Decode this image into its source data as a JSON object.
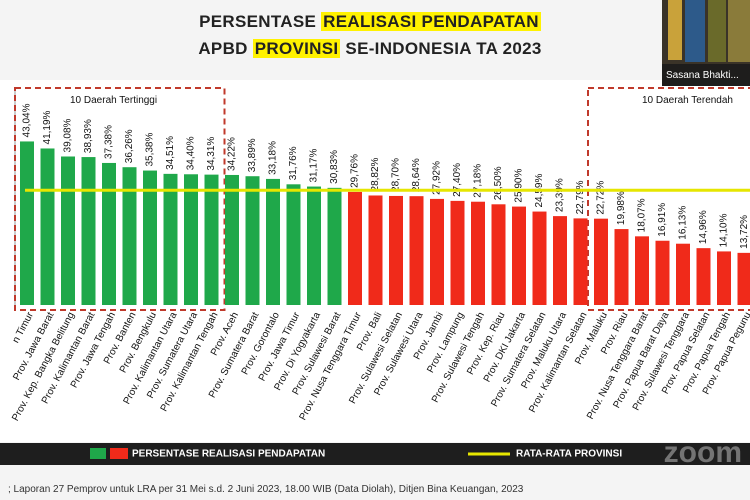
{
  "chart_data": {
    "type": "bar",
    "title_lines": [
      [
        {
          "text": "PERSENTASE ",
          "highlight": false
        },
        {
          "text": "REALISASI PENDAPATAN",
          "highlight": true
        }
      ],
      [
        {
          "text": "APBD ",
          "highlight": false
        },
        {
          "text": "PROVINSI",
          "highlight": true
        },
        {
          "text": " SE-INDONESIA TA 2023",
          "highlight": false
        }
      ]
    ],
    "categories": [
      "n Timur",
      "Prov. Jawa Barat",
      "Prov. Kep. Bangka Belitung",
      "Prov. Kalimantan Barat",
      "Prov. Jawa Tengah",
      "Prov. Banten",
      "Prov. Bengkulu",
      "Prov. Kalimantan Utara",
      "Prov. Sumatera Utara",
      "Prov. Kalimantan Tengah",
      "Prov. Aceh",
      "Prov. Sumatera Barat",
      "Prov. Gorontalo",
      "Prov. Jawa Timur",
      "Prov. Di Yogyakarta",
      "Prov. Sulawesi Barat",
      "Prov. Nusa Tenggara Timur",
      "Prov. Bali",
      "Prov. Sulawesi Selatan",
      "Prov. Sulawesi Utara",
      "Prov. Jambi",
      "Prov. Lampung",
      "Prov. Sulawesi Tengah",
      "Prov. Kep. Riau",
      "Prov. DKI Jakarta",
      "Prov. Sumatera Selatan",
      "Prov. Maluku Utara",
      "Prov. Kalimantan Selatan",
      "Prov. Maluku",
      "Prov. Riau",
      "Prov. Nusa Tenggara Barat",
      "Prov. Papua Barat Daya",
      "Prov. Sulawesi Tenggara",
      "Prov. Papua Selatan",
      "Prov. Papua Tengah",
      "Prov. Papua Pegunu"
    ],
    "values": [
      43.04,
      41.19,
      39.08,
      38.93,
      37.38,
      36.26,
      35.38,
      34.51,
      34.4,
      34.31,
      34.22,
      33.89,
      33.18,
      31.76,
      31.17,
      30.83,
      29.76,
      28.82,
      28.7,
      28.64,
      27.92,
      27.4,
      27.18,
      26.5,
      25.9,
      24.59,
      23.39,
      22.79,
      22.72,
      19.98,
      18.07,
      16.91,
      16.13,
      14.96,
      14.1,
      13.72
    ],
    "value_labels": [
      "43,04%",
      "41,19%",
      "39,08%",
      "38,93%",
      "37,38%",
      "36,26%",
      "35,38%",
      "34,51%",
      "34,40%",
      "34,31%",
      "34,22%",
      "33,89%",
      "33,18%",
      "31,76%",
      "31,17%",
      "30,83%",
      "29,76%",
      "28,82%",
      "28,70%",
      "28,64%",
      "27,92%",
      "27,40%",
      "27,18%",
      "26,50%",
      "25,90%",
      "24,59%",
      "23,39%",
      "22,79%",
      "22,72%",
      "19,98%",
      "18,07%",
      "16,91%",
      "16,13%",
      "14,96%",
      "14,10%",
      "13,72%"
    ],
    "series_name": "PERSENTASE REALISASI PENDAPATAN",
    "colors": {
      "above": "#1fa84a",
      "below": "#f02a1a"
    },
    "average": {
      "name": "RATA-RATA PROVINSI",
      "value": 30.2,
      "color": "#e6e600"
    },
    "ylim": [
      0,
      50
    ],
    "annotations": [
      "10 Daerah Tertinggi",
      "10 Daerah Terendah"
    ],
    "source": "; Laporan 27 Pemprov untuk LRA per 31 Mei s.d. 2 Juni 2023, 18.00 WIB (Data Diolah), Ditjen Bina Keuangan, 2023",
    "video_caption": "Sasana Bhakti...",
    "watermark": "zoom"
  }
}
